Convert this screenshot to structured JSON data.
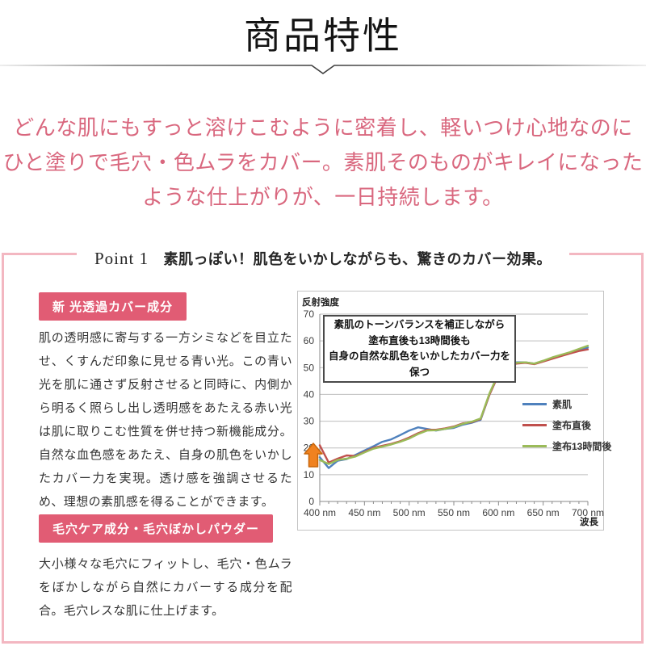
{
  "page": {
    "title": "商品特性",
    "lead": {
      "lines": [
        "どんな肌にもすっと溶けこむように密着し、軽いつけ心地なのに",
        "ひと塗りで毛穴・色ムラをカバー。素肌そのものがキレイになった",
        "ような仕上がりが、一日持続します。"
      ],
      "color": "#d9677e"
    }
  },
  "point_section": {
    "title_en": "Point 1",
    "title_ja": "素肌っぽい！肌色をいかしながらも、驚きのカバー効果。",
    "frame_color": "#f3b7c1",
    "badge_color": "#e15c74",
    "badge1": "新 光透過カバー成分",
    "body1": "肌の透明感に寄与する一方シミなどを目立たせ、くすんだ印象に見せる青い光。この青い光を肌に通さず反射させると同時に、内側から明るく照らし出し透明感をあたえる赤い光は肌に取りこむ性質を併せ持つ新機能成分。自然な血色感をあたえ、自身の肌色をいかしたカバー力を実現。透け感を強調させるため、理想の素肌感を得ることができます。",
    "badge2": "毛穴ケア成分・毛穴ぼかしパウダー",
    "body2": "大小様々な毛穴にフィットし、毛穴・色ムラをぼかしながら自然にカバーする成分を配合。毛穴レスな肌に仕上げます。"
  },
  "chart_data": {
    "type": "line",
    "title": "",
    "ylabel": "反射強度",
    "xlabel": "波長",
    "ylim": [
      0,
      70
    ],
    "yticks": [
      0,
      10,
      20,
      30,
      40,
      50,
      60,
      70
    ],
    "xtick_labels": [
      "400 nm",
      "450 nm",
      "500 nm",
      "550 nm",
      "600 nm",
      "650 nm",
      "700 nm"
    ],
    "x_start_nm": 400,
    "x_end_nm": 700,
    "x_step_nm": 10,
    "grid": true,
    "legend_position": "inside-right-middle",
    "annotation": {
      "lines": [
        "素肌のトーンバランスを補正しながら",
        "塗布直後も13時間後も",
        "自身の自然な肌色をいかしたカバー力を保つ"
      ]
    },
    "arrow_icon": {
      "name": "orange-up-arrow",
      "fill": "#f08220",
      "stroke": "#c8660a",
      "at_nm": 400
    },
    "series": [
      {
        "name": "素肌",
        "color": "#4f81bd",
        "values": [
          16.5,
          12.5,
          15.2,
          15.8,
          17.4,
          19,
          20.6,
          22.3,
          23.2,
          24.8,
          26.5,
          27.7,
          27.1,
          26.5,
          27.1,
          27.5,
          28.7,
          29.4,
          30.5,
          40,
          47.5,
          50.5,
          52,
          52,
          51.5,
          52.5,
          53.5,
          54.5,
          55.5,
          56.5,
          57.5
        ]
      },
      {
        "name": "塗布直後",
        "color": "#c0504d",
        "values": [
          21,
          14.5,
          16,
          17.2,
          17,
          18.5,
          20,
          20.8,
          21.5,
          22.5,
          23.9,
          25.5,
          26.8,
          26.8,
          27.3,
          28,
          29.2,
          29.6,
          30.8,
          40,
          47.3,
          50.2,
          51.5,
          51.8,
          51.3,
          52.3,
          53.3,
          54.3,
          55.3,
          56.2,
          56.8
        ]
      },
      {
        "name": "塗布13時間後",
        "color": "#9bbb59",
        "values": [
          15.5,
          14,
          15.5,
          16,
          16.8,
          18.3,
          19.7,
          20.5,
          21.3,
          22.3,
          23.5,
          25.2,
          26.5,
          26.6,
          27.1,
          27.8,
          29,
          29.8,
          31,
          40.5,
          47.8,
          50.6,
          51.8,
          52,
          51.5,
          52.6,
          53.8,
          54.8,
          55.8,
          57,
          58.2
        ]
      }
    ]
  }
}
